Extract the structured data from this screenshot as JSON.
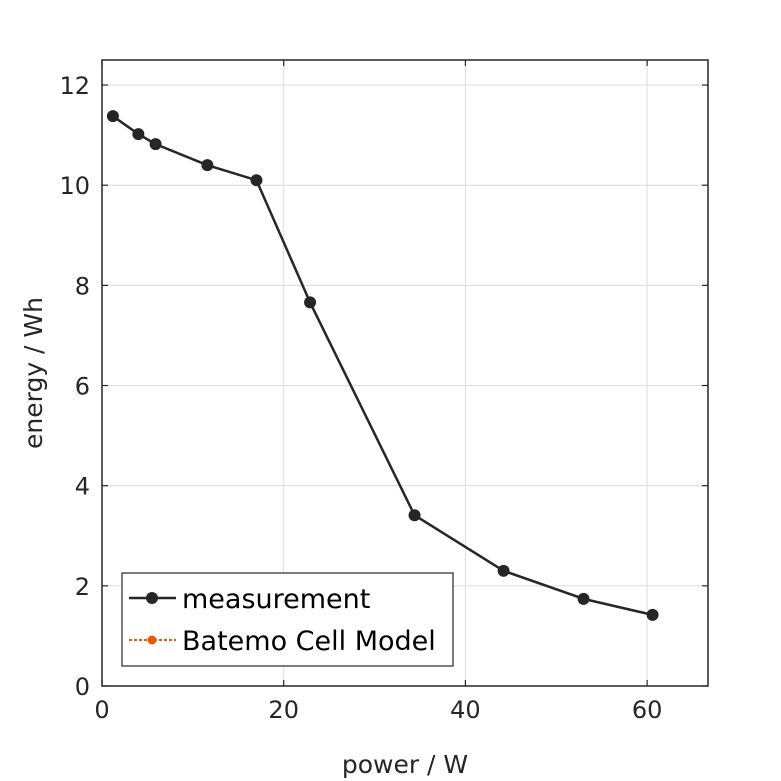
{
  "chart_data": {
    "type": "line",
    "title": "",
    "xlabel": "power / W",
    "ylabel": "energy / Wh",
    "xlim": [
      0,
      66.7
    ],
    "ylim": [
      0,
      12.5
    ],
    "xticks": [
      0,
      20,
      40,
      60
    ],
    "yticks": [
      0,
      2,
      4,
      6,
      8,
      10,
      12
    ],
    "grid": true,
    "legend_position": "bottom-left",
    "series": [
      {
        "name": "measurement",
        "color": "#262626",
        "marker": "circle",
        "line": "solid",
        "x": [
          1.2,
          4.0,
          5.9,
          11.6,
          17.0,
          22.9,
          34.4,
          44.2,
          53.0,
          60.6
        ],
        "y": [
          11.38,
          11.02,
          10.82,
          10.4,
          10.1,
          7.66,
          3.41,
          2.3,
          1.74,
          1.42
        ]
      },
      {
        "name": "Batemo Cell Model",
        "color": "#e8590c",
        "marker": "circle",
        "line": "dotted",
        "x": [],
        "y": []
      }
    ]
  }
}
